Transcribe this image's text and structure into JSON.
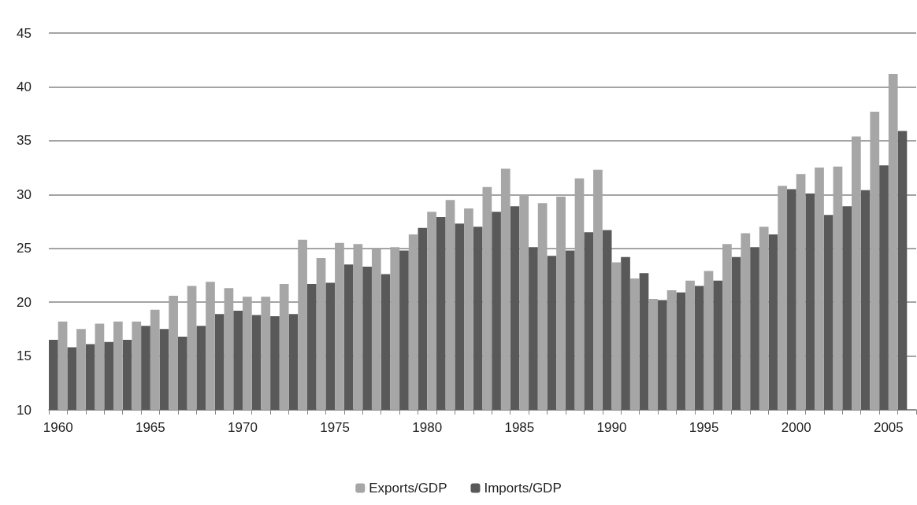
{
  "chart_data": {
    "type": "bar",
    "categories": [
      "1960",
      null,
      null,
      null,
      null,
      "1965",
      null,
      null,
      null,
      null,
      "1970",
      null,
      null,
      null,
      null,
      "1975",
      null,
      null,
      null,
      null,
      "1980",
      null,
      null,
      null,
      null,
      "1985",
      null,
      null,
      null,
      null,
      "1990",
      null,
      null,
      null,
      null,
      "1995",
      null,
      null,
      null,
      null,
      "2000",
      null,
      null,
      null,
      null,
      "2005",
      null
    ],
    "series": [
      {
        "name": "Exports/GDP",
        "color": "#a6a6a6",
        "values": [
          18.2,
          17.5,
          18.0,
          18.2,
          18.2,
          19.3,
          20.6,
          21.5,
          21.9,
          21.3,
          20.5,
          20.5,
          21.7,
          25.8,
          24.1,
          25.5,
          25.4,
          24.9,
          25.1,
          26.3,
          28.4,
          29.5,
          28.7,
          30.7,
          32.4,
          30.0,
          29.2,
          29.8,
          31.5,
          32.3,
          23.7,
          22.2,
          20.3,
          21.1,
          22.0,
          22.9,
          25.4,
          26.4,
          27.0,
          30.8,
          31.9,
          32.5,
          32.6,
          35.4,
          37.7,
          41.2,
          null
        ]
      },
      {
        "name": "Imports/GDP",
        "color": "#595959",
        "values": [
          16.5,
          15.8,
          16.1,
          16.3,
          16.5,
          17.8,
          17.5,
          16.8,
          17.8,
          18.9,
          19.2,
          18.8,
          18.7,
          18.9,
          21.7,
          21.8,
          23.5,
          23.3,
          22.6,
          24.8,
          26.9,
          27.9,
          27.3,
          27.0,
          28.4,
          28.9,
          25.1,
          24.3,
          24.8,
          26.5,
          26.7,
          24.2,
          22.7,
          20.2,
          20.9,
          21.5,
          22.0,
          24.2,
          25.1,
          26.3,
          30.5,
          30.1,
          28.1,
          28.9,
          30.4,
          32.7,
          35.9
        ]
      }
    ],
    "ylim": [
      10,
      45
    ],
    "yticks": [
      10,
      15,
      20,
      25,
      30,
      35,
      40,
      45
    ],
    "grid": "y",
    "legend": "bottom"
  }
}
